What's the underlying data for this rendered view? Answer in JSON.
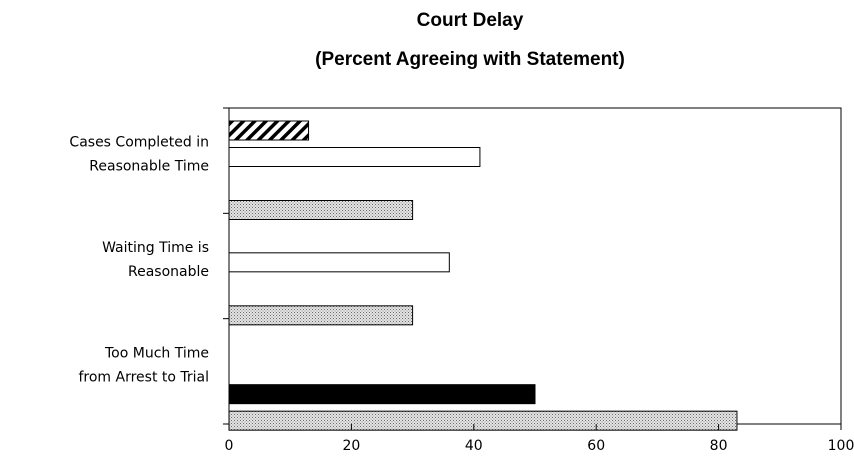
{
  "chart_data": {
    "type": "bar",
    "orientation": "horizontal",
    "title_lines": [
      "Court Delay",
      "(Percent Agreeing with Statement)"
    ],
    "categories": [
      [
        "Cases Completed in",
        "Reasonable Time"
      ],
      [
        "Waiting Time is",
        "Reasonable"
      ],
      [
        "Too Much Time",
        "from Arrest to Trial"
      ]
    ],
    "series": [
      {
        "pattern": "diagonal-hatch",
        "color": "#000000",
        "values": [
          13,
          null,
          null
        ]
      },
      {
        "pattern": "solid",
        "color": "#ffffff",
        "values": [
          41,
          36,
          null
        ]
      },
      {
        "pattern": "solid",
        "color": "#000000",
        "values": [
          null,
          null,
          50
        ]
      },
      {
        "pattern": "dotted-gray",
        "color": "#b0b0b0",
        "values": [
          30,
          30,
          83
        ]
      }
    ],
    "xlim": [
      0,
      100
    ],
    "xticks": [
      0,
      20,
      40,
      60,
      80,
      100
    ],
    "xlabel": "",
    "ylabel": "",
    "grid": false,
    "legend": "none"
  }
}
